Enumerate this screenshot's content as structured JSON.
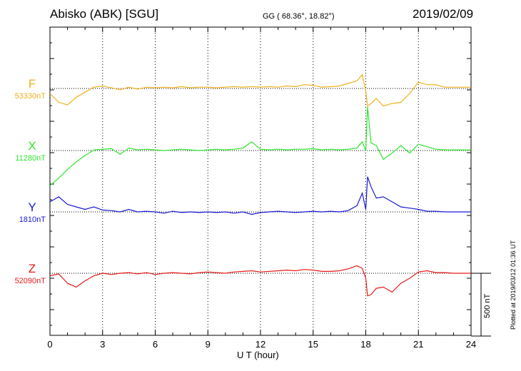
{
  "header": {
    "station": "Abisko (ABK)  [SGU]",
    "coords": "GG ( 68.36°,  18.82°)",
    "date": "2019/02/09"
  },
  "plotted_note": "Plotted at 2019/03/12 01:36 UT",
  "scale_bar_label": "500 nT",
  "chart_data": {
    "type": "line",
    "title": "",
    "xlabel": "U T (hour)",
    "ylabel": "",
    "xlim": [
      0,
      24
    ],
    "x_ticks": [
      0,
      3,
      6,
      9,
      12,
      15,
      18,
      21,
      24
    ],
    "x_tick_labels": [
      "0",
      "3",
      "6",
      "9",
      "12",
      "15",
      "18",
      "21",
      "24"
    ],
    "grid": true,
    "scale_bar_nT": 500,
    "x": [
      0,
      0.5,
      1,
      1.5,
      2,
      2.5,
      3,
      3.5,
      4,
      4.5,
      5,
      5.5,
      6,
      6.5,
      7,
      7.5,
      8,
      8.5,
      9,
      9.5,
      10,
      10.5,
      11,
      11.5,
      12,
      12.5,
      13,
      13.5,
      14,
      14.5,
      15,
      15.5,
      16,
      16.5,
      17,
      17.5,
      17.8,
      18,
      18.1,
      18.3,
      18.6,
      19,
      19.5,
      20,
      20.5,
      21,
      21.5,
      22,
      22.5,
      23,
      23.5,
      24
    ],
    "series": [
      {
        "name": "F",
        "baseline_label": "53330nT",
        "color": "#f0b01c",
        "values": [
          -40,
          -110,
          -130,
          -70,
          -30,
          10,
          20,
          5,
          -10,
          10,
          -5,
          10,
          5,
          10,
          5,
          15,
          5,
          10,
          10,
          5,
          10,
          15,
          10,
          15,
          10,
          15,
          10,
          20,
          15,
          30,
          25,
          10,
          15,
          20,
          40,
          60,
          110,
          -20,
          -140,
          -120,
          -80,
          -140,
          -120,
          -110,
          -40,
          50,
          30,
          30,
          10,
          10,
          10,
          10
        ]
      },
      {
        "name": "X",
        "baseline_label": "11280nT",
        "color": "#2ee62e",
        "values": [
          -280,
          -220,
          -150,
          -90,
          -40,
          5,
          10,
          15,
          -30,
          20,
          5,
          10,
          5,
          0,
          5,
          10,
          5,
          0,
          5,
          10,
          5,
          10,
          20,
          70,
          10,
          5,
          10,
          5,
          10,
          10,
          15,
          5,
          10,
          5,
          10,
          20,
          70,
          0,
          350,
          60,
          40,
          -70,
          -20,
          40,
          -20,
          50,
          30,
          10,
          5,
          5,
          5,
          5
        ]
      },
      {
        "name": "Y",
        "baseline_label": "1810nT",
        "color": "#1a1ad6",
        "values": [
          80,
          120,
          60,
          40,
          20,
          40,
          15,
          10,
          0,
          20,
          0,
          5,
          0,
          -10,
          5,
          -5,
          0,
          -5,
          0,
          -5,
          0,
          -10,
          0,
          -20,
          -5,
          0,
          5,
          0,
          -5,
          0,
          5,
          0,
          5,
          0,
          10,
          50,
          150,
          20,
          280,
          200,
          110,
          120,
          80,
          40,
          30,
          20,
          5,
          5,
          0,
          0,
          0,
          0
        ]
      },
      {
        "name": "Z",
        "baseline_label": "52090nT",
        "color": "#e61a1a",
        "values": [
          -20,
          -5,
          -80,
          -110,
          -60,
          -20,
          0,
          -10,
          0,
          5,
          -5,
          5,
          -10,
          0,
          5,
          0,
          -5,
          5,
          10,
          5,
          0,
          10,
          15,
          20,
          10,
          15,
          20,
          25,
          20,
          30,
          25,
          15,
          15,
          20,
          35,
          60,
          40,
          -40,
          -180,
          -170,
          -120,
          -110,
          -150,
          -80,
          -40,
          10,
          20,
          5,
          5,
          0,
          0,
          0
        ]
      }
    ]
  }
}
